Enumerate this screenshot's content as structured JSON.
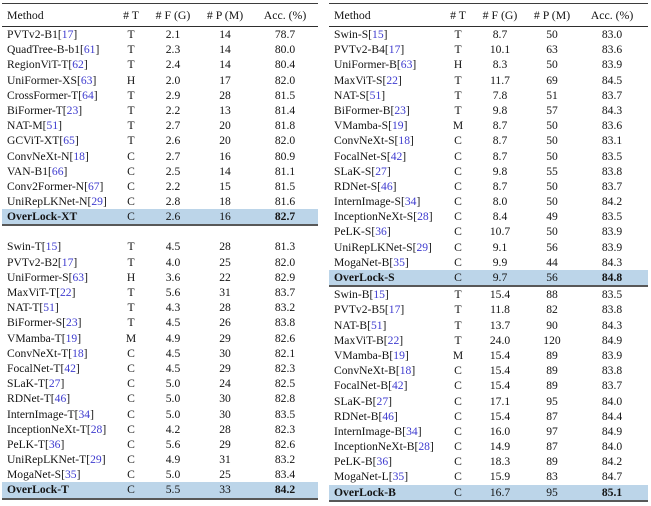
{
  "columns": [
    "Method",
    "# T",
    "# F (G)",
    "# P (M)",
    "Acc. (%)"
  ],
  "colors": {
    "highlight_row": "#bcd5e9",
    "citation_link": "#3e3bcf",
    "rule_heavy": "#585858",
    "rule_thin": "#2e2e2e",
    "text": "#131313"
  },
  "tables": [
    {
      "name": "left-results-table",
      "gap_after_section": 0,
      "sections": [
        {
          "rows": [
            {
              "m": "PVTv2-B1",
              "cite": "17",
              "t": "T",
              "f": "2.1",
              "p": "14",
              "a": "78.7",
              "highlight": false
            },
            {
              "m": "QuadTree-B-b1",
              "cite": "61",
              "t": "T",
              "f": "2.3",
              "p": "14",
              "a": "80.0",
              "highlight": false
            },
            {
              "m": "RegionViT-T",
              "cite": "62",
              "t": "T",
              "f": "2.4",
              "p": "14",
              "a": "80.4",
              "highlight": false
            },
            {
              "m": "UniFormer-XS",
              "cite": "63",
              "t": "H",
              "f": "2.0",
              "p": "17",
              "a": "82.0",
              "highlight": false
            },
            {
              "m": "CrossFormer-T",
              "cite": "64",
              "t": "T",
              "f": "2.9",
              "p": "28",
              "a": "81.5",
              "highlight": false
            },
            {
              "m": "BiFormer-T",
              "cite": "23",
              "t": "T",
              "f": "2.2",
              "p": "13",
              "a": "81.4",
              "highlight": false
            },
            {
              "m": "NAT-M",
              "cite": "51",
              "t": "T",
              "f": "2.7",
              "p": "20",
              "a": "81.8",
              "highlight": false
            },
            {
              "m": "GCViT-XT",
              "cite": "65",
              "t": "T",
              "f": "2.6",
              "p": "20",
              "a": "82.0",
              "highlight": false
            },
            {
              "m": "ConvNeXt-N",
              "cite": "18",
              "t": "C",
              "f": "2.7",
              "p": "16",
              "a": "80.9",
              "highlight": false
            },
            {
              "m": "VAN-B1",
              "cite": "66",
              "t": "C",
              "f": "2.5",
              "p": "14",
              "a": "81.1",
              "highlight": false
            },
            {
              "m": "Conv2Former-N",
              "cite": "67",
              "t": "C",
              "f": "2.2",
              "p": "15",
              "a": "81.5",
              "highlight": false
            },
            {
              "m": "UniRepLKNet-N",
              "cite": "29",
              "t": "C",
              "f": "2.8",
              "p": "18",
              "a": "81.6",
              "highlight": false
            },
            {
              "m": "OverLock-XT",
              "cite": null,
              "t": "C",
              "f": "2.6",
              "p": "16",
              "a": "82.7",
              "highlight": true
            }
          ]
        },
        {
          "rows": [
            {
              "m": "Swin-T",
              "cite": "15",
              "t": "T",
              "f": "4.5",
              "p": "28",
              "a": "81.3",
              "highlight": false
            },
            {
              "m": "PVTv2-B2",
              "cite": "17",
              "t": "T",
              "f": "4.0",
              "p": "25",
              "a": "82.0",
              "highlight": false
            },
            {
              "m": "UniFormer-S",
              "cite": "63",
              "t": "H",
              "f": "3.6",
              "p": "22",
              "a": "82.9",
              "highlight": false
            },
            {
              "m": "MaxViT-T",
              "cite": "22",
              "t": "T",
              "f": "5.6",
              "p": "31",
              "a": "83.7",
              "highlight": false
            },
            {
              "m": "NAT-T",
              "cite": "51",
              "t": "T",
              "f": "4.3",
              "p": "28",
              "a": "83.2",
              "highlight": false
            },
            {
              "m": "BiFormer-S",
              "cite": "23",
              "t": "T",
              "f": "4.5",
              "p": "26",
              "a": "83.8",
              "highlight": false
            },
            {
              "m": "VMamba-T",
              "cite": "19",
              "t": "M",
              "f": "4.9",
              "p": "29",
              "a": "82.6",
              "highlight": false
            },
            {
              "m": "ConvNeXt-T",
              "cite": "18",
              "t": "C",
              "f": "4.5",
              "p": "30",
              "a": "82.1",
              "highlight": false
            },
            {
              "m": "FocalNet-T",
              "cite": "42",
              "t": "C",
              "f": "4.5",
              "p": "29",
              "a": "82.3",
              "highlight": false
            },
            {
              "m": "SLaK-T",
              "cite": "27",
              "t": "C",
              "f": "5.0",
              "p": "24",
              "a": "82.5",
              "highlight": false
            },
            {
              "m": "RDNet-T",
              "cite": "46",
              "t": "C",
              "f": "5.0",
              "p": "30",
              "a": "82.8",
              "highlight": false
            },
            {
              "m": "InternImage-T",
              "cite": "34",
              "t": "C",
              "f": "5.0",
              "p": "30",
              "a": "83.5",
              "highlight": false
            },
            {
              "m": "InceptionNeXt-T",
              "cite": "28",
              "t": "C",
              "f": "4.2",
              "p": "28",
              "a": "82.3",
              "highlight": false
            },
            {
              "m": "PeLK-T",
              "cite": "36",
              "t": "C",
              "f": "5.6",
              "p": "29",
              "a": "82.6",
              "highlight": false
            },
            {
              "m": "UniRepLKNet-T",
              "cite": "29",
              "t": "C",
              "f": "4.9",
              "p": "31",
              "a": "83.2",
              "highlight": false
            },
            {
              "m": "MogaNet-S",
              "cite": "35",
              "t": "C",
              "f": "5.0",
              "p": "25",
              "a": "83.4",
              "highlight": false
            },
            {
              "m": "OverLock-T",
              "cite": null,
              "t": "C",
              "f": "5.5",
              "p": "33",
              "a": "84.2",
              "highlight": true
            }
          ]
        }
      ]
    },
    {
      "name": "right-results-table",
      "gap_after_section": -1,
      "sections": [
        {
          "rows": [
            {
              "m": "Swin-S",
              "cite": "15",
              "t": "T",
              "f": "8.7",
              "p": "50",
              "a": "83.0",
              "highlight": false
            },
            {
              "m": "PVTv2-B4",
              "cite": "17",
              "t": "T",
              "f": "10.1",
              "p": "63",
              "a": "83.6",
              "highlight": false
            },
            {
              "m": "UniFormer-B",
              "cite": "63",
              "t": "H",
              "f": "8.3",
              "p": "50",
              "a": "83.9",
              "highlight": false
            },
            {
              "m": "MaxViT-S",
              "cite": "22",
              "t": "T",
              "f": "11.7",
              "p": "69",
              "a": "84.5",
              "highlight": false
            },
            {
              "m": "NAT-S",
              "cite": "51",
              "t": "T",
              "f": "7.8",
              "p": "51",
              "a": "83.7",
              "highlight": false
            },
            {
              "m": "BiFormer-B",
              "cite": "23",
              "t": "T",
              "f": "9.8",
              "p": "57",
              "a": "84.3",
              "highlight": false
            },
            {
              "m": "VMamba-S",
              "cite": "19",
              "t": "M",
              "f": "8.7",
              "p": "50",
              "a": "83.6",
              "highlight": false
            },
            {
              "m": "ConvNeXt-S",
              "cite": "18",
              "t": "C",
              "f": "8.7",
              "p": "50",
              "a": "83.1",
              "highlight": false
            },
            {
              "m": "FocalNet-S",
              "cite": "42",
              "t": "C",
              "f": "8.7",
              "p": "50",
              "a": "83.5",
              "highlight": false
            },
            {
              "m": "SLaK-S",
              "cite": "27",
              "t": "C",
              "f": "9.8",
              "p": "55",
              "a": "83.8",
              "highlight": false
            },
            {
              "m": "RDNet-S",
              "cite": "46",
              "t": "C",
              "f": "8.7",
              "p": "50",
              "a": "83.7",
              "highlight": false
            },
            {
              "m": "InternImage-S",
              "cite": "34",
              "t": "C",
              "f": "8.0",
              "p": "50",
              "a": "84.2",
              "highlight": false
            },
            {
              "m": "InceptionNeXt-S",
              "cite": "28",
              "t": "C",
              "f": "8.4",
              "p": "49",
              "a": "83.5",
              "highlight": false
            },
            {
              "m": "PeLK-S",
              "cite": "36",
              "t": "C",
              "f": "10.7",
              "p": "50",
              "a": "83.9",
              "highlight": false
            },
            {
              "m": "UniRepLKNet-S",
              "cite": "29",
              "t": "C",
              "f": "9.1",
              "p": "56",
              "a": "83.9",
              "highlight": false
            },
            {
              "m": "MogaNet-B",
              "cite": "35",
              "t": "C",
              "f": "9.9",
              "p": "44",
              "a": "84.3",
              "highlight": false
            },
            {
              "m": "OverLock-S",
              "cite": null,
              "t": "C",
              "f": "9.7",
              "p": "56",
              "a": "84.8",
              "highlight": true
            }
          ]
        },
        {
          "rows": [
            {
              "m": "Swin-B",
              "cite": "15",
              "t": "T",
              "f": "15.4",
              "p": "88",
              "a": "83.5",
              "highlight": false
            },
            {
              "m": "PVTv2-B5",
              "cite": "17",
              "t": "T",
              "f": "11.8",
              "p": "82",
              "a": "83.8",
              "highlight": false
            },
            {
              "m": "NAT-B",
              "cite": "51",
              "t": "T",
              "f": "13.7",
              "p": "90",
              "a": "84.3",
              "highlight": false
            },
            {
              "m": "MaxViT-B",
              "cite": "22",
              "t": "T",
              "f": "24.0",
              "p": "120",
              "a": "84.9",
              "highlight": false
            },
            {
              "m": "VMamba-B",
              "cite": "19",
              "t": "M",
              "f": "15.4",
              "p": "89",
              "a": "83.9",
              "highlight": false
            },
            {
              "m": "ConvNeXt-B",
              "cite": "18",
              "t": "C",
              "f": "15.4",
              "p": "89",
              "a": "83.8",
              "highlight": false
            },
            {
              "m": "FocalNet-B",
              "cite": "42",
              "t": "C",
              "f": "15.4",
              "p": "89",
              "a": "83.7",
              "highlight": false
            },
            {
              "m": "SLaK-B",
              "cite": "27",
              "t": "C",
              "f": "17.1",
              "p": "95",
              "a": "84.0",
              "highlight": false
            },
            {
              "m": "RDNet-B",
              "cite": "46",
              "t": "C",
              "f": "15.4",
              "p": "87",
              "a": "84.4",
              "highlight": false
            },
            {
              "m": "InternImage-B",
              "cite": "34",
              "t": "C",
              "f": "16.0",
              "p": "97",
              "a": "84.9",
              "highlight": false
            },
            {
              "m": "InceptionNeXt-B",
              "cite": "28",
              "t": "C",
              "f": "14.9",
              "p": "87",
              "a": "84.0",
              "highlight": false
            },
            {
              "m": "PeLK-B",
              "cite": "36",
              "t": "C",
              "f": "18.3",
              "p": "89",
              "a": "84.2",
              "highlight": false
            },
            {
              "m": "MogaNet-L",
              "cite": "35",
              "t": "C",
              "f": "15.9",
              "p": "83",
              "a": "84.7",
              "highlight": false
            },
            {
              "m": "OverLock-B",
              "cite": null,
              "t": "C",
              "f": "16.7",
              "p": "95",
              "a": "85.1",
              "highlight": true
            }
          ]
        }
      ]
    }
  ]
}
